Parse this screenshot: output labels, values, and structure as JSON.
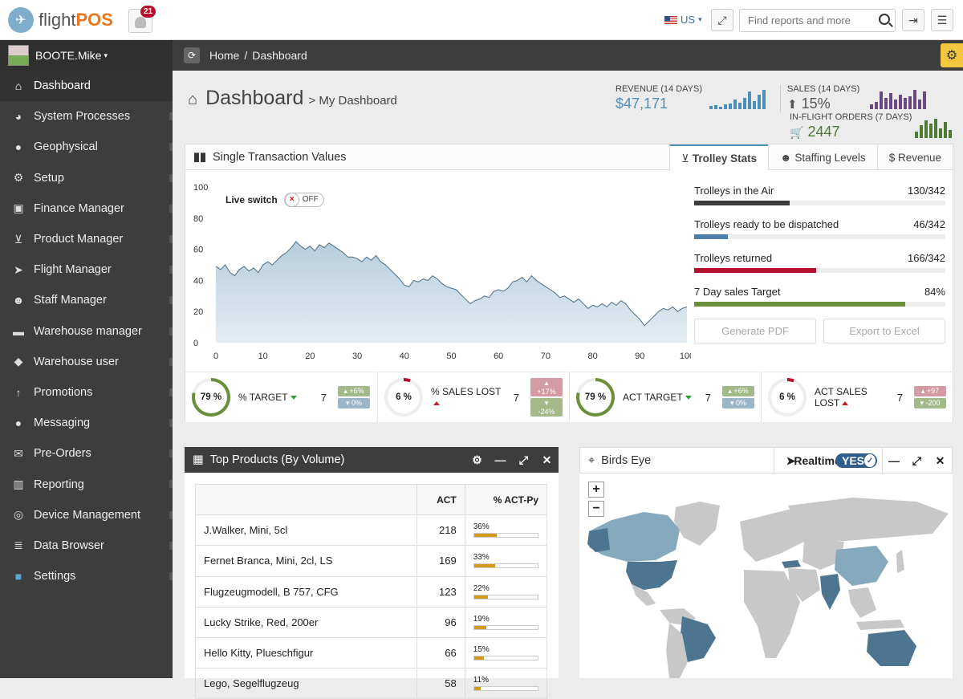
{
  "brand": {
    "name_a": "flight",
    "name_b": "POS"
  },
  "notifications": {
    "count": "21"
  },
  "locale": {
    "label": "US"
  },
  "search": {
    "placeholder": "Find reports and more"
  },
  "user": {
    "name": "BOOTE.Mike"
  },
  "sidebar": {
    "items": [
      {
        "label": "Dashboard",
        "icon": "home-icon"
      },
      {
        "label": "System Processes",
        "icon": "palette-icon"
      },
      {
        "label": "Geophysical",
        "icon": "globe-icon"
      },
      {
        "label": "Setup",
        "icon": "gears-icon"
      },
      {
        "label": "Finance Manager",
        "icon": "money-icon"
      },
      {
        "label": "Product Manager",
        "icon": "cart-icon"
      },
      {
        "label": "Flight Manager",
        "icon": "paper-plane-icon"
      },
      {
        "label": "Staff Manager",
        "icon": "users-icon"
      },
      {
        "label": "Warehouse manager",
        "icon": "truck-icon"
      },
      {
        "label": "Warehouse user",
        "icon": "tag-icon"
      },
      {
        "label": "Promotions",
        "icon": "level-up-icon"
      },
      {
        "label": "Messaging",
        "icon": "comment-icon"
      },
      {
        "label": "Pre-Orders",
        "icon": "envelope-icon"
      },
      {
        "label": "Reporting",
        "icon": "bar-chart-icon"
      },
      {
        "label": "Device Management",
        "icon": "gamepad-icon"
      },
      {
        "label": "Data Browser",
        "icon": "database-icon"
      },
      {
        "label": "Settings",
        "icon": "cube-icon"
      }
    ]
  },
  "breadcrumb": {
    "home": "Home",
    "separator": "/",
    "current": "Dashboard"
  },
  "page": {
    "title": "Dashboard",
    "subtitle": "> My Dashboard"
  },
  "kpis": {
    "revenue": {
      "label": "REVENUE (14 DAYS)",
      "value": "$47,171"
    },
    "sales": {
      "label": "SALES (14 DAYS)",
      "value": "15%"
    },
    "orders": {
      "label": "IN-FLIGHT ORDERS (7 DAYS)",
      "value": "2447"
    }
  },
  "stv_panel": {
    "title": "Single Transaction Values",
    "live_label": "Live switch",
    "toggle_label": "OFF",
    "tabs": [
      "Trolley Stats",
      "Staffing Levels",
      "$ Revenue"
    ]
  },
  "chart_data": {
    "type": "area",
    "title": "",
    "xlabel": "",
    "ylabel": "",
    "xlim": [
      0,
      100
    ],
    "ylim": [
      0,
      100
    ],
    "x_ticks": [
      "0",
      "10",
      "20",
      "30",
      "40",
      "50",
      "60",
      "70",
      "80",
      "90",
      "100"
    ],
    "y_ticks": [
      "0",
      "20",
      "40",
      "60",
      "80",
      "100"
    ],
    "grid": false,
    "values": [
      49,
      47,
      50,
      45,
      43,
      47,
      49,
      46,
      48,
      45,
      50,
      52,
      50,
      53,
      56,
      58,
      61,
      65,
      62,
      60,
      62,
      59,
      63,
      61,
      64,
      62,
      60,
      58,
      55,
      55,
      54,
      52,
      55,
      53,
      56,
      52,
      50,
      47,
      44,
      41,
      37,
      36,
      40,
      39,
      41,
      40,
      43,
      41,
      38,
      36,
      35,
      34,
      31,
      28,
      25,
      27,
      28,
      30,
      29,
      33,
      34,
      33,
      35,
      39,
      40,
      42,
      39,
      43,
      40,
      38,
      36,
      34,
      32,
      29,
      30,
      28,
      26,
      28,
      25,
      22,
      24,
      23,
      25,
      23,
      26,
      24,
      27,
      25,
      21,
      18,
      15,
      11,
      14,
      17,
      20,
      22,
      21,
      23,
      20,
      22,
      23
    ]
  },
  "trolley_stats": [
    {
      "label": "Trolleys in the Air",
      "value": "130/342",
      "fill": 0.38,
      "color": "#3d3d3d"
    },
    {
      "label": "Trolleys ready to be dispatched",
      "value": "46/342",
      "fill": 0.135,
      "color": "#4e7fa8"
    },
    {
      "label": "Trolleys returned",
      "value": "166/342",
      "fill": 0.485,
      "color": "#b3112e"
    },
    {
      "label": "7 Day sales Target",
      "value": "84%",
      "fill": 0.84,
      "color": "#6b8e3a"
    }
  ],
  "actions": {
    "pdf": "Generate PDF",
    "excel": "Export to Excel"
  },
  "mini_stats": [
    {
      "pct": "79 %",
      "ring": 0.79,
      "ring_color": "#6b8e3a",
      "label": "% TARGET",
      "trend": "down",
      "num": "7",
      "p1": "+6%",
      "p2": "0%",
      "pc1": "#a3b98a",
      "pc2": "#9bb5c9"
    },
    {
      "pct": "6 %",
      "ring": 0.06,
      "ring_color": "#b3112e",
      "label": "% SALES LOST",
      "trend": "up",
      "num": "7",
      "p1": "+17%",
      "p2": "-24%",
      "pc1": "#d39ba4",
      "pc2": "#a3b98a"
    },
    {
      "pct": "79 %",
      "ring": 0.79,
      "ring_color": "#6b8e3a",
      "label": "ACT TARGET",
      "trend": "down",
      "num": "7",
      "p1": "+6%",
      "p2": "0%",
      "pc1": "#a3b98a",
      "pc2": "#9bb5c9"
    },
    {
      "pct": "6 %",
      "ring": 0.06,
      "ring_color": "#b3112e",
      "label": "ACT SALES LOST",
      "trend": "up",
      "num": "7",
      "p1": "+97",
      "p2": "-200",
      "pc1": "#d39ba4",
      "pc2": "#a3b98a"
    }
  ],
  "top_products": {
    "title": "Top Products (By Volume)",
    "col_act": "ACT",
    "col_pct": "% ACT-Py",
    "rows": [
      {
        "name": "J.Walker, Mini, 5cl",
        "act": "218",
        "pct": "36%",
        "fill": 0.36
      },
      {
        "name": "Fernet Branca, Mini, 2cl, LS",
        "act": "169",
        "pct": "33%",
        "fill": 0.33
      },
      {
        "name": "Flugzeugmodell, B 757, CFG",
        "act": "123",
        "pct": "22%",
        "fill": 0.22
      },
      {
        "name": "Lucky Strike, Red, 200er",
        "act": "96",
        "pct": "19%",
        "fill": 0.19
      },
      {
        "name": "Hello Kitty, Plueschfigur",
        "act": "66",
        "pct": "15%",
        "fill": 0.15
      },
      {
        "name": "Lego, Segelflugzeug",
        "act": "58",
        "pct": "11%",
        "fill": 0.11
      }
    ]
  },
  "birds_eye": {
    "title": "Birds Eye",
    "realtime": "Realtime",
    "toggle": "YES",
    "zoom_in": "+",
    "zoom_out": "−"
  }
}
